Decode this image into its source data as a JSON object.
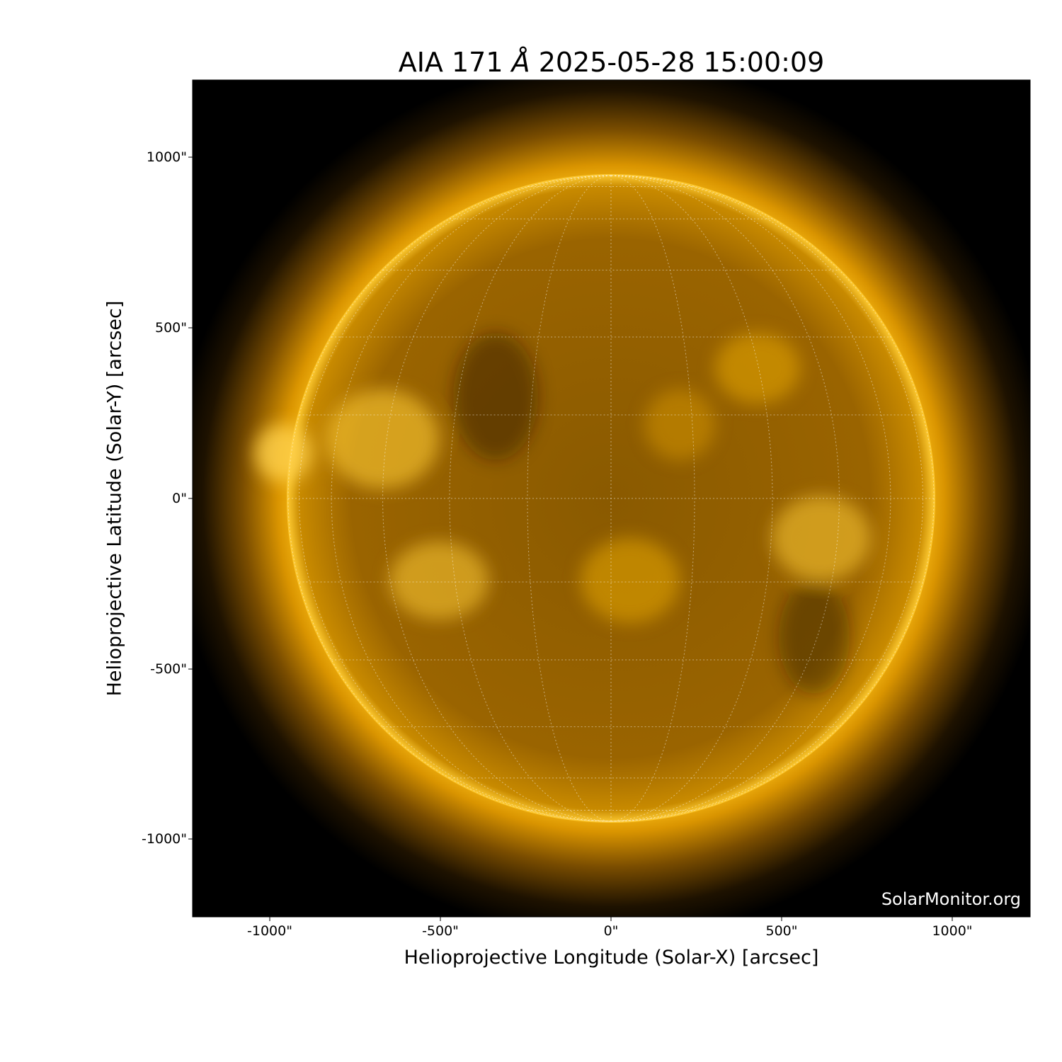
{
  "title": {
    "instrument": "AIA 171",
    "unit": "Å",
    "datetime": "2025-05-28 15:00:09"
  },
  "x_axis": {
    "label": "Helioprojective Longitude (Solar-X) [arcsec]",
    "ticks": [
      "-1000\"",
      "-500\"",
      "0\"",
      "500\"",
      "1000\""
    ]
  },
  "y_axis": {
    "label": "Helioprojective Latitude (Solar-Y) [arcsec]",
    "ticks": [
      "1000\"",
      "500\"",
      "0\"",
      "-500\"",
      "-1000\""
    ]
  },
  "watermark": "SolarMonitor.org",
  "colors": {
    "background": "#000000",
    "sun_bright": "#ffc21a",
    "sun_mid": "#b87800",
    "sun_dark": "#3a2400",
    "grid": "#ffffff"
  }
}
